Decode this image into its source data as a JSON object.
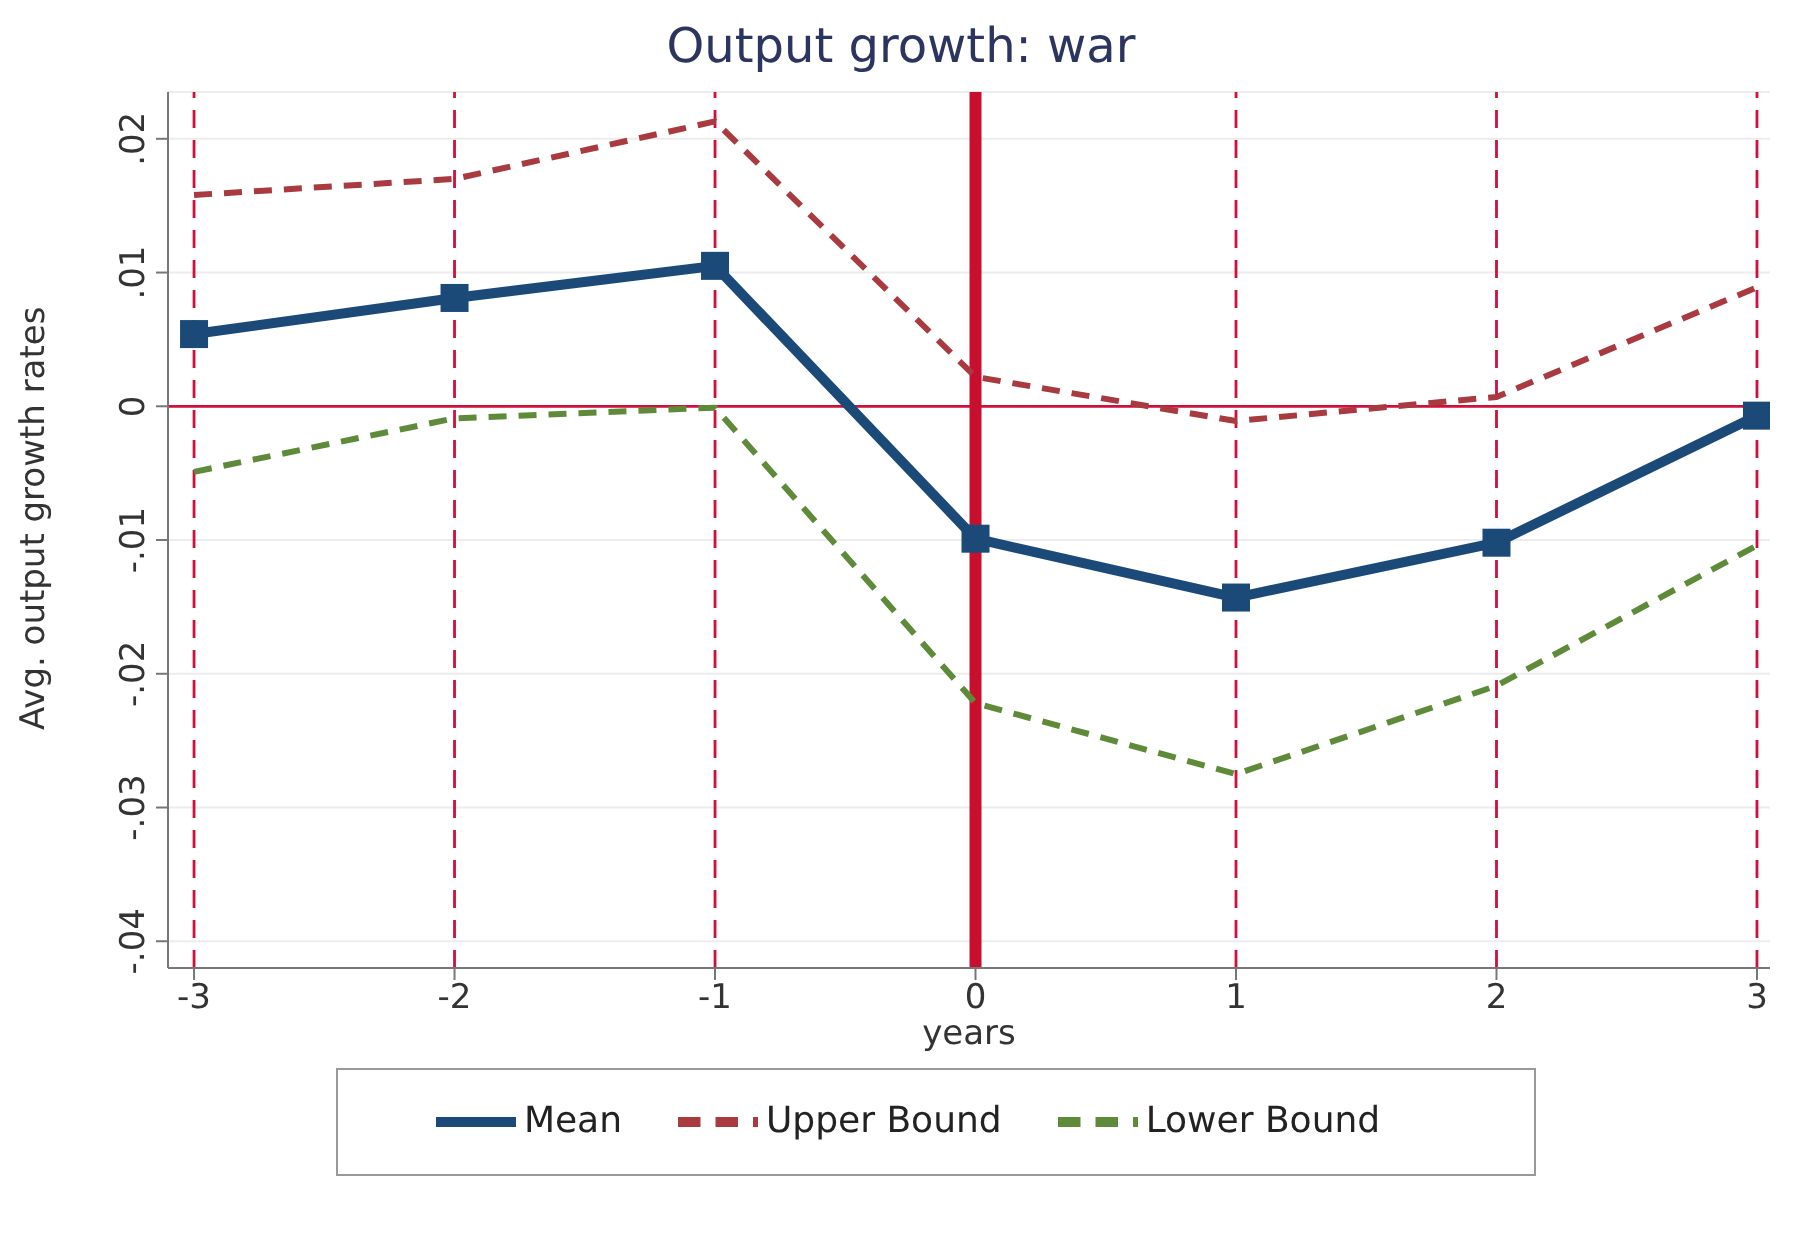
{
  "chart_data": {
    "type": "line",
    "title": "Output growth: war",
    "xlabel": "years",
    "ylabel": "Avg. output growth rates",
    "x": [
      -3,
      -2,
      -1,
      0,
      1,
      2,
      3
    ],
    "series": [
      {
        "name": "Mean",
        "color": "#1c4a78",
        "marker": "square",
        "line_style": "solid",
        "values": [
          0.0054,
          0.0081,
          0.0105,
          -0.0099,
          -0.0143,
          -0.0102,
          -0.0007
        ]
      },
      {
        "name": "Upper Bound",
        "color": "#a83a40",
        "marker": "none",
        "line_style": "dashed",
        "values": [
          0.0158,
          0.017,
          0.0213,
          0.0022,
          -0.0011,
          0.0007,
          0.0089
        ]
      },
      {
        "name": "Lower Bound",
        "color": "#5e8a3a",
        "marker": "none",
        "line_style": "dashed",
        "values": [
          -0.0049,
          -0.0009,
          -0.0001,
          -0.0222,
          -0.0275,
          -0.0209,
          -0.0104
        ]
      }
    ],
    "xlim": [
      -3.1,
      3.05
    ],
    "xticks": [
      -3,
      -2,
      -1,
      0,
      1,
      2,
      3
    ],
    "ylim": [
      -0.042,
      0.0235
    ],
    "yticks": [
      {
        "value": -0.04,
        "label": "-.04"
      },
      {
        "value": -0.03,
        "label": "-.03"
      },
      {
        "value": -0.02,
        "label": "-.02"
      },
      {
        "value": -0.01,
        "label": "-.01"
      },
      {
        "value": 0,
        "label": "0"
      },
      {
        "value": 0.01,
        "label": ".01"
      },
      {
        "value": 0.02,
        "label": ".02"
      }
    ],
    "ref_lines": [
      {
        "axis": "y",
        "value": 0,
        "color": "#d0103a",
        "line_style": "solid"
      },
      {
        "axis": "x",
        "value": 0,
        "color": "#c8102e",
        "line_style": "solid"
      },
      {
        "axis": "x",
        "value": -3,
        "color": "#d0103a",
        "line_style": "dashed"
      },
      {
        "axis": "x",
        "value": -2,
        "color": "#d0103a",
        "line_style": "dashed"
      },
      {
        "axis": "x",
        "value": -1,
        "color": "#d0103a",
        "line_style": "dashed"
      },
      {
        "axis": "x",
        "value": 1,
        "color": "#d0103a",
        "line_style": "dashed"
      },
      {
        "axis": "x",
        "value": 2,
        "color": "#d0103a",
        "line_style": "dashed"
      },
      {
        "axis": "x",
        "value": 3,
        "color": "#d0103a",
        "line_style": "dashed"
      }
    ],
    "grid": "y",
    "legend": "bottom"
  }
}
